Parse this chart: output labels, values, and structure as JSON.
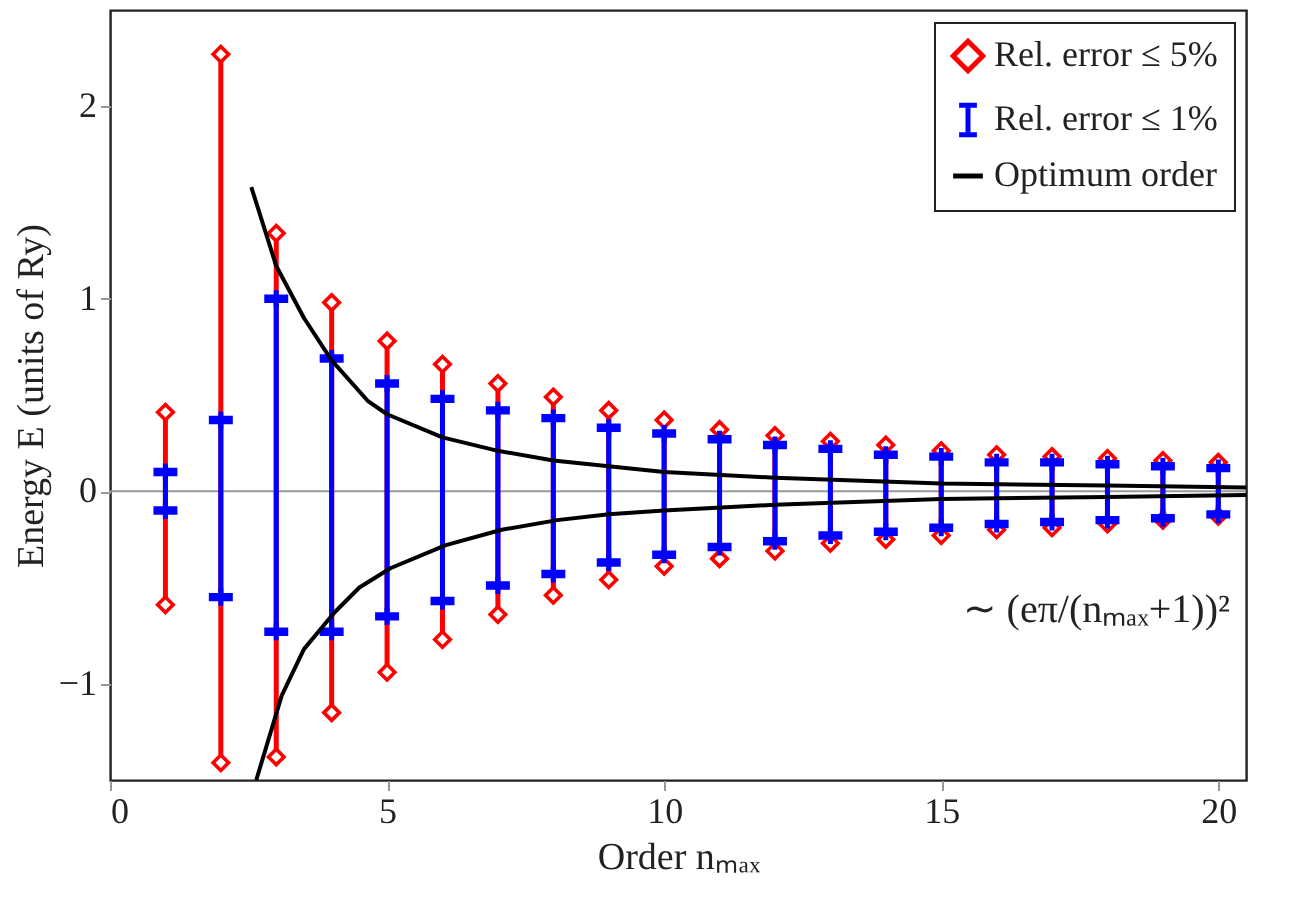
{
  "chart_data": {
    "type": "scatter",
    "xlabel": "Order nₘₐₓ",
    "ylabel": "Energy E (units of Ry)",
    "x": [
      1,
      2,
      3,
      4,
      5,
      6,
      7,
      8,
      9,
      10,
      11,
      12,
      13,
      14,
      15,
      16,
      17,
      18,
      19,
      20
    ],
    "series": [
      {
        "name": "Rel. error ≤ 5%",
        "color": "#ff0000",
        "marker": "diamond",
        "values": [
          0.41,
          2.27,
          1.34,
          0.98,
          0.78,
          0.66,
          0.56,
          0.49,
          0.42,
          0.37,
          0.32,
          0.29,
          0.26,
          0.24,
          0.21,
          0.19,
          0.18,
          0.17,
          0.16,
          0.15
        ],
        "errors": [
          [
            -0.59,
            0.41
          ],
          [
            -1.41,
            2.27
          ],
          [
            -1.38,
            1.34
          ],
          [
            -1.15,
            0.98
          ],
          [
            -0.94,
            0.78
          ],
          [
            -0.77,
            0.66
          ],
          [
            -0.64,
            0.56
          ],
          [
            -0.54,
            0.49
          ],
          [
            -0.46,
            0.42
          ],
          [
            -0.39,
            0.37
          ],
          [
            -0.35,
            0.32
          ],
          [
            -0.31,
            0.29
          ],
          [
            -0.27,
            0.26
          ],
          [
            -0.25,
            0.24
          ],
          [
            -0.23,
            0.21
          ],
          [
            -0.2,
            0.19
          ],
          [
            -0.19,
            0.18
          ],
          [
            -0.17,
            0.17
          ],
          [
            -0.15,
            0.16
          ],
          [
            -0.13,
            0.15
          ]
        ]
      },
      {
        "color": "#ff0000",
        "marker": "diamond",
        "values": [
          -0.59,
          -1.41,
          -1.38,
          -1.15,
          -0.94,
          -0.77,
          -0.64,
          -0.54,
          -0.46,
          -0.39,
          -0.35,
          -0.31,
          -0.27,
          -0.25,
          -0.23,
          -0.2,
          -0.19,
          -0.17,
          -0.15,
          -0.13
        ]
      },
      {
        "name": "Rel. error ≤ 1%",
        "color": "#0000ff",
        "marker": "cross",
        "values": [
          0.1,
          0.37,
          1.0,
          0.69,
          0.56,
          0.48,
          0.42,
          0.38,
          0.33,
          0.3,
          0.27,
          0.24,
          0.22,
          0.19,
          0.18,
          0.15,
          0.15,
          0.14,
          0.13,
          0.12
        ],
        "errors": [
          [
            -0.1,
            0.1
          ],
          [
            -0.55,
            0.37
          ],
          [
            -0.73,
            1.0
          ],
          [
            -0.73,
            0.69
          ],
          [
            -0.65,
            0.56
          ],
          [
            -0.57,
            0.48
          ],
          [
            -0.49,
            0.42
          ],
          [
            -0.43,
            0.38
          ],
          [
            -0.37,
            0.33
          ],
          [
            -0.33,
            0.3
          ],
          [
            -0.29,
            0.27
          ],
          [
            -0.26,
            0.24
          ],
          [
            -0.23,
            0.22
          ],
          [
            -0.21,
            0.19
          ],
          [
            -0.19,
            0.18
          ],
          [
            -0.17,
            0.15
          ],
          [
            -0.16,
            0.15
          ],
          [
            -0.15,
            0.14
          ],
          [
            -0.14,
            0.13
          ],
          [
            -0.12,
            0.12
          ]
        ]
      },
      {
        "color": "#0000ff",
        "marker": "cross",
        "values": [
          -0.1,
          -0.55,
          -0.73,
          -0.73,
          -0.65,
          -0.57,
          -0.49,
          -0.43,
          -0.37,
          -0.33,
          -0.29,
          -0.26,
          -0.23,
          -0.21,
          -0.19,
          -0.17,
          -0.16,
          -0.15,
          -0.14,
          -0.12
        ]
      },
      {
        "name": "Optimum order",
        "type": "line",
        "color": "#000000",
        "x": [
          2.55,
          3,
          3.5,
          4,
          4.65,
          5,
          6,
          7,
          8,
          9,
          10,
          12,
          15,
          18,
          20.5
        ],
        "values": [
          1.58,
          1.17,
          0.9,
          0.68,
          0.47,
          0.4,
          0.28,
          0.21,
          0.16,
          0.13,
          0.1,
          0.07,
          0.04,
          0.03,
          0.02
        ]
      },
      {
        "type": "line",
        "color": "#000000",
        "x": [
          2.64,
          3.1,
          3.5,
          4.05,
          4.5,
          5.06,
          6.06,
          7.07,
          8.07,
          9,
          10,
          12,
          15,
          18,
          20.5
        ],
        "values": [
          -1.5,
          -1.06,
          -0.82,
          -0.63,
          -0.5,
          -0.4,
          -0.28,
          -0.2,
          -0.15,
          -0.12,
          -0.1,
          -0.07,
          -0.04,
          -0.03,
          -0.02
        ]
      }
    ],
    "xlim": [
      0,
      20.5
    ],
    "ylim": [
      -1.5,
      2.5
    ],
    "xticks": [
      0,
      5,
      10,
      15,
      20
    ],
    "yticks": [
      -1,
      0,
      1,
      2
    ],
    "ref_lines": [
      {
        "axis": "y",
        "value": 0,
        "color": "#999999"
      }
    ],
    "annotations": [
      "∼ (eπ/(nₘₐₓ+1))²"
    ],
    "legend": "top right",
    "grid": false
  }
}
